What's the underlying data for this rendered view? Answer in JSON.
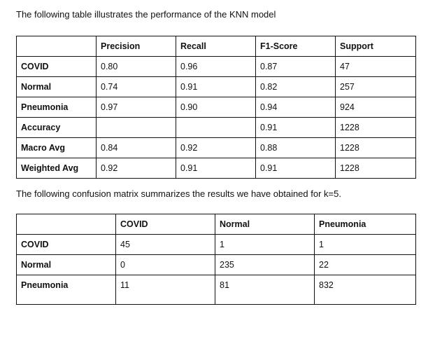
{
  "caption_performance": "The following table illustrates the performance of the KNN model",
  "performance_table": {
    "headers": [
      "",
      "Precision",
      "Recall",
      "F1-Score",
      "Support"
    ],
    "rows": [
      [
        "COVID",
        "0.80",
        "0.96",
        "0.87",
        "47"
      ],
      [
        "Normal",
        "0.74",
        "0.91",
        "0.82",
        "257"
      ],
      [
        "Pneumonia",
        "0.97",
        "0.90",
        "0.94",
        "924"
      ],
      [
        "Accuracy",
        "",
        "",
        "0.91",
        "1228"
      ],
      [
        "Macro Avg",
        "0.84",
        "0.92",
        "0.88",
        "1228"
      ],
      [
        "Weighted Avg",
        "0.92",
        "0.91",
        "0.91",
        "1228"
      ]
    ]
  },
  "caption_confusion": "The following confusion matrix summarizes the results we have obtained for k=5.",
  "confusion_table": {
    "headers": [
      "",
      "COVID",
      "Normal",
      "Pneumonia"
    ],
    "rows": [
      [
        "COVID",
        "45",
        "1",
        "1"
      ],
      [
        "Normal",
        "0",
        "235",
        "22"
      ],
      [
        "Pneumonia",
        "11",
        "81",
        "832"
      ]
    ]
  }
}
